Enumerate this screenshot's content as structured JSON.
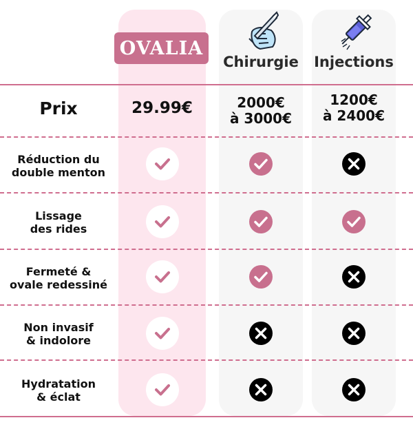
{
  "header": {
    "brand": "OVALIA",
    "columns": [
      {
        "label": "Chirurgie",
        "icon": "scalpel-hand-icon"
      },
      {
        "label": "Injections",
        "icon": "syringe-icon"
      }
    ]
  },
  "colors": {
    "accent": "#c8708e",
    "ovalia_column": "#fde6ee",
    "other_columns": "#f6f6f6",
    "cross": "#000000"
  },
  "rows": [
    {
      "label": [
        "Prix"
      ],
      "values": [
        [
          "29.99€"
        ],
        [
          "2000€",
          "à 3000€"
        ],
        [
          "1200€",
          "à 2400€"
        ]
      ]
    },
    {
      "label": [
        "Réduction du",
        "double menton"
      ],
      "values": [
        "check",
        "check",
        "cross"
      ]
    },
    {
      "label": [
        "Lissage",
        "des rides"
      ],
      "values": [
        "check",
        "check",
        "check"
      ]
    },
    {
      "label": [
        "Fermeté &",
        "ovale redessiné"
      ],
      "values": [
        "check",
        "check",
        "cross"
      ]
    },
    {
      "label": [
        "Non invasif",
        "& indolore"
      ],
      "values": [
        "check",
        "cross",
        "cross"
      ]
    },
    {
      "label": [
        "Hydratation",
        "& éclat"
      ],
      "values": [
        "check",
        "cross",
        "cross"
      ]
    }
  ]
}
